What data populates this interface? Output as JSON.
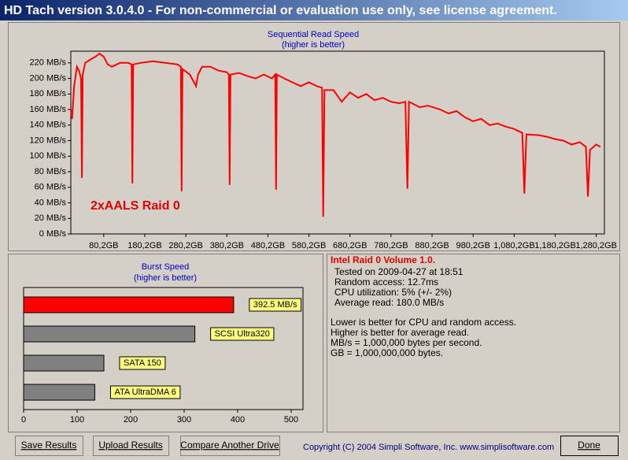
{
  "window": {
    "title": "HD Tach version 3.0.4.0  - For non-commercial or evaluation use only, see license agreement.",
    "buttons": [
      "Save Results",
      "Upload Results",
      "Compare Another Drive",
      "Done"
    ],
    "copyright": "Copyright (C) 2004 Simpli Software, Inc. www.simplisoftware.com"
  },
  "info": {
    "title": "Intel Raid 0 Volume 1.0.",
    "lines": [
      "Tested on 2009-04-27 at 18:51",
      "Random access: 12.7ms",
      "CPU utilization: 5% (+/- 2%)",
      "Average read: 180.0 MB/s"
    ],
    "notes": [
      "Lower is better for CPU and random access.",
      "Higher is better for average read.",
      "MB/s = 1,000,000 bytes per second.",
      "GB = 1,000,000,000 bytes."
    ]
  },
  "chart_data": [
    {
      "type": "line",
      "title": "Sequential Read Speed",
      "subtitle": "(higher is better)",
      "annotation": "2xAALS Raid 0",
      "color": "#ff0000",
      "x": [
        0,
        3,
        8,
        15,
        20,
        25,
        27,
        29,
        35,
        50,
        60,
        70,
        80,
        90,
        100,
        120,
        140,
        148,
        150,
        152,
        170,
        200,
        230,
        260,
        268,
        270,
        272,
        290,
        305,
        310,
        320,
        340,
        360,
        380,
        385,
        387,
        389,
        410,
        430,
        450,
        470,
        490,
        498,
        500,
        502,
        520,
        540,
        560,
        580,
        600,
        612,
        615,
        618,
        640,
        660,
        680,
        700,
        720,
        740,
        760,
        780,
        800,
        815,
        820,
        824,
        850,
        870,
        900,
        920,
        940,
        960,
        980,
        1000,
        1020,
        1040,
        1060,
        1080,
        1100,
        1105,
        1110,
        1140,
        1160,
        1180,
        1200,
        1220,
        1240,
        1255,
        1260,
        1265,
        1280,
        1290
      ],
      "values": [
        160,
        148,
        190,
        215,
        210,
        200,
        72,
        205,
        220,
        225,
        228,
        232,
        228,
        218,
        215,
        220,
        220,
        218,
        65,
        218,
        220,
        222,
        220,
        218,
        215,
        55,
        212,
        205,
        190,
        205,
        215,
        215,
        210,
        208,
        205,
        63,
        205,
        207,
        203,
        200,
        205,
        200,
        205,
        57,
        205,
        200,
        195,
        190,
        195,
        190,
        188,
        22,
        185,
        185,
        170,
        182,
        175,
        180,
        172,
        175,
        170,
        168,
        170,
        58,
        170,
        163,
        165,
        160,
        155,
        158,
        150,
        145,
        148,
        140,
        142,
        138,
        135,
        130,
        52,
        128,
        127,
        125,
        122,
        120,
        115,
        118,
        112,
        48,
        108,
        115,
        112
      ],
      "xlim": [
        0,
        1300
      ],
      "xticks": [
        {
          "value": 80.2,
          "label": "80,2GB"
        },
        {
          "value": 180.2,
          "label": "180,2GB"
        },
        {
          "value": 280.2,
          "label": "280,2GB"
        },
        {
          "value": 380.2,
          "label": "380,2GB"
        },
        {
          "value": 480.2,
          "label": "480,2GB"
        },
        {
          "value": 580.2,
          "label": "580,2GB"
        },
        {
          "value": 680.2,
          "label": "680,2GB"
        },
        {
          "value": 780.2,
          "label": "780,2GB"
        },
        {
          "value": 880.2,
          "label": "880,2GB"
        },
        {
          "value": 980.2,
          "label": "980,2GB"
        },
        {
          "value": 1080.2,
          "label": "1,080,2GB"
        },
        {
          "value": 1180.2,
          "label": "1,180,2GB"
        },
        {
          "value": 1280.2,
          "label": "1,280,2GB"
        }
      ],
      "ylim": [
        0,
        235
      ],
      "yticks": [
        {
          "value": 0,
          "label": "0 MB/s"
        },
        {
          "value": 20,
          "label": "20 MB/s"
        },
        {
          "value": 40,
          "label": "40 MB/s"
        },
        {
          "value": 60,
          "label": "60 MB/s"
        },
        {
          "value": 80,
          "label": "80 MB/s"
        },
        {
          "value": 100,
          "label": "100 MB/s"
        },
        {
          "value": 120,
          "label": "120 MB/s"
        },
        {
          "value": 140,
          "label": "140 MB/s"
        },
        {
          "value": 160,
          "label": "160 MB/s"
        },
        {
          "value": 180,
          "label": "180 MB/s"
        },
        {
          "value": 200,
          "label": "200 MB/s"
        },
        {
          "value": 220,
          "label": "220 MB/s"
        }
      ]
    },
    {
      "type": "hbar",
      "title": "Burst Speed",
      "subtitle": "(higher is better)",
      "categories": [
        null,
        "SCSI Ultra320",
        "SATA 150",
        "ATA UltraDMA 6"
      ],
      "values": [
        392.5,
        320,
        150,
        133
      ],
      "value_labels": [
        "392.5 MB/s",
        null,
        null,
        null
      ],
      "colors": [
        "#ff0000",
        "#808080",
        "#808080",
        "#808080"
      ],
      "xlim": [
        0,
        500
      ],
      "xticks": [
        0,
        100,
        200,
        300,
        400,
        500
      ]
    }
  ]
}
